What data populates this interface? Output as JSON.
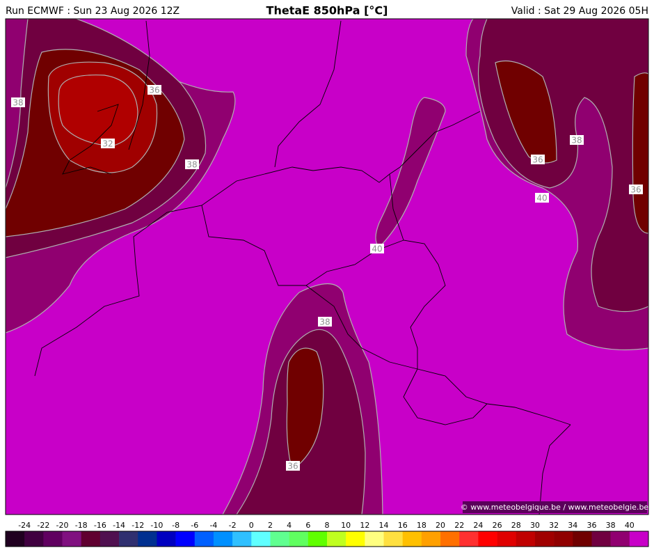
{
  "header": {
    "run": "Run ECMWF : Sun 23 Aug 2026 12Z",
    "title": "ThetaE 850hPa [°C]",
    "valid": "Valid : Sat 29 Aug 2026 05H"
  },
  "contour_labels": [
    38,
    36,
    32,
    38,
    36,
    38,
    36,
    40,
    40,
    38,
    36
  ],
  "credit": "© www.meteobelgique.be / www.meteobelgie.be",
  "colorbar": {
    "labels": [
      -24,
      -22,
      -20,
      -18,
      -16,
      -14,
      -12,
      -10,
      -8,
      -6,
      -4,
      -2,
      0,
      2,
      4,
      6,
      8,
      10,
      12,
      14,
      16,
      18,
      20,
      22,
      24,
      26,
      28,
      30,
      32,
      34,
      36,
      38,
      40
    ],
    "colors": [
      "#200020",
      "#400040",
      "#600060",
      "#801080",
      "#600030",
      "#501050",
      "#303070",
      "#003090",
      "#0000c0",
      "#0000ff",
      "#0060ff",
      "#0090ff",
      "#30c0ff",
      "#60ffff",
      "#60ff90",
      "#60ff60",
      "#60ff00",
      "#c0ff20",
      "#ffff00",
      "#ffff80",
      "#ffe040",
      "#ffc000",
      "#ffa000",
      "#ff7000",
      "#ff3030",
      "#ff0000",
      "#e00000",
      "#c00000",
      "#a00000",
      "#900000",
      "#700000",
      "#700040",
      "#900070",
      "#c800c8"
    ]
  }
}
